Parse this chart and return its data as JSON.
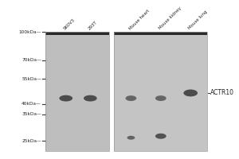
{
  "bg_color": "#ffffff",
  "gel_bg1": "#bebebe",
  "gel_bg2": "#c4c4c4",
  "lane_labels": [
    "SKOV3",
    "293T",
    "Mouse heart",
    "Mouse kidney",
    "Mouse lung"
  ],
  "mw_markers": [
    100,
    70,
    55,
    40,
    35,
    25
  ],
  "mw_label_str": [
    "100kDa—",
    "70kDa—",
    "55kDa—",
    "40kDa—",
    "35kDa—",
    "25kDa—"
  ],
  "title": "ACTR10",
  "separator_color": "#ffffff",
  "dark_bar_color": "#2a2a2a",
  "band_color_p1": "#424242",
  "band_color_p2_faint": "#585858",
  "band_color_p2_strong": "#3a3a3a",
  "band_color_low": "#3e3e3e"
}
